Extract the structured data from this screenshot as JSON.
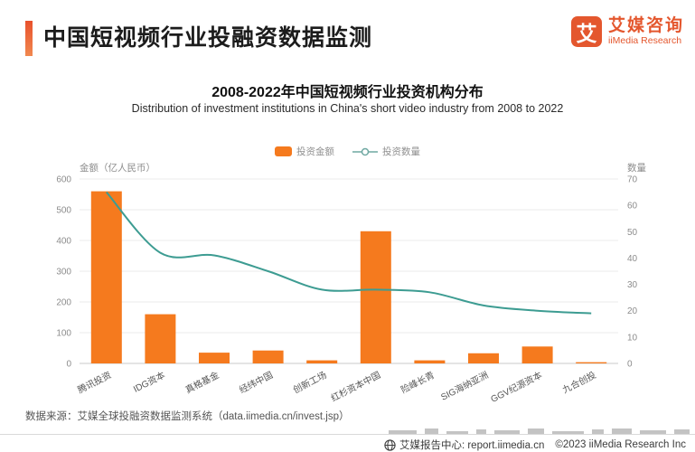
{
  "header": {
    "title": "中国短视频行业投融资数据监测",
    "logo": {
      "icon_char": "艾",
      "name_cn": "艾媒咨询",
      "name_en": "iiMedia Research"
    }
  },
  "chart_data": {
    "type": "bar",
    "title": "2008-2022年中国短视频行业投资机构分布",
    "subtitle": "Distribution of investment institutions in China's short video industry from 2008 to 2022",
    "categories": [
      "腾讯投资",
      "IDG资本",
      "真格基金",
      "经纬中国",
      "创新工场",
      "红杉资本中国",
      "险峰长青",
      "SIG海纳亚洲",
      "GGV纪源资本",
      "九合创投"
    ],
    "series": [
      {
        "name": "投资金额",
        "type": "bar",
        "axis": "left",
        "values": [
          560,
          160,
          35,
          42,
          10,
          430,
          10,
          33,
          55,
          4
        ]
      },
      {
        "name": "投资数量",
        "type": "line",
        "axis": "right",
        "values": [
          65,
          42,
          41,
          35,
          28,
          28,
          27,
          22,
          20,
          19
        ]
      }
    ],
    "left_axis_label": "金额（亿人民币）",
    "right_axis_label": "数量",
    "left_ylim": [
      0,
      600
    ],
    "left_ticks": [
      0,
      100,
      200,
      300,
      400,
      500,
      600
    ],
    "right_ylim": [
      0,
      70
    ],
    "right_ticks": [
      0,
      10,
      20,
      30,
      40,
      50,
      60,
      70
    ],
    "grid": true,
    "legend_position": "top-center",
    "colors": {
      "bar": "#f57a1e",
      "line": "#3d9c92"
    }
  },
  "footer": {
    "source": "数据来源：艾媒全球投融资数据监测系统（data.iimedia.cn/invest.jsp）",
    "report_center": "艾媒报告中心: report.iimedia.cn",
    "copyright": "©2023  iiMedia Research Inc"
  },
  "colors": {
    "brand_orange": "#e4572e",
    "bar_orange": "#f57a1e",
    "line_teal": "#3d9c92"
  }
}
